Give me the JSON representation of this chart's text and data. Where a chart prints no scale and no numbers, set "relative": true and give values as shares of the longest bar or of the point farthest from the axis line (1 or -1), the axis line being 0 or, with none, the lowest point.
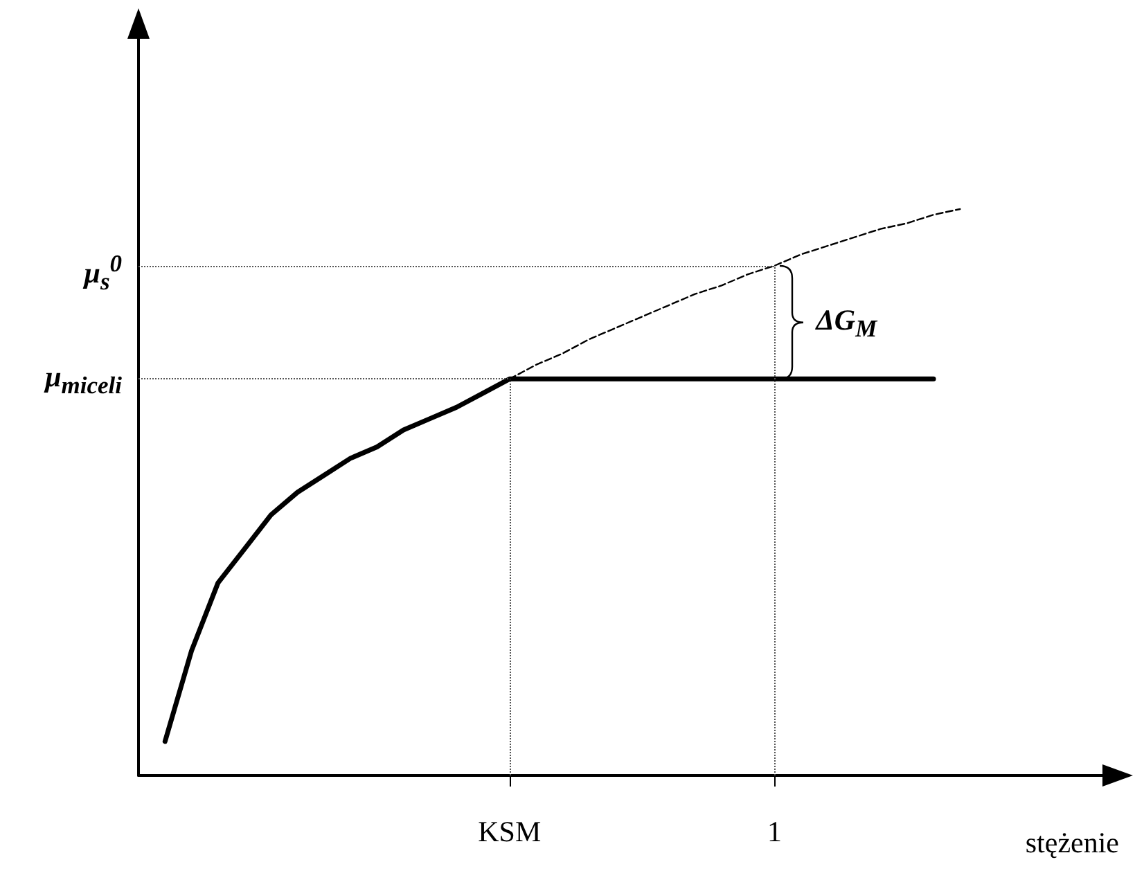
{
  "chart_data": {
    "type": "line",
    "relative": true,
    "xlabel": "stężenie",
    "categories": [
      null,
      null,
      null,
      null,
      null,
      null,
      null,
      null,
      null,
      null,
      null,
      null,
      null,
      null,
      "KSM",
      null,
      null,
      null,
      null,
      null,
      null,
      null,
      null,
      null,
      "1",
      null,
      null,
      null,
      null,
      null,
      null,
      null,
      null,
      null,
      null,
      null,
      null,
      null
    ],
    "marker": "none",
    "grid": false,
    "series": [
      {
        "color": "#000000",
        "line_style": "solid",
        "values": [
          null,
          0.06,
          0.22,
          0.34,
          0.4,
          0.46,
          0.5,
          0.53,
          0.56,
          0.58,
          0.61,
          0.63,
          0.65,
          0.675,
          0.7,
          0.7,
          0.7,
          0.7,
          0.7,
          0.7,
          0.7,
          0.7,
          0.7,
          0.7,
          0.7,
          0.7,
          0.7,
          0.7,
          0.7,
          0.7,
          0.7,
          null,
          null,
          null,
          null,
          null,
          null,
          null
        ]
      },
      {
        "color": "#000000",
        "line_style": "dashed",
        "values": [
          null,
          null,
          null,
          null,
          null,
          null,
          null,
          null,
          null,
          null,
          null,
          null,
          null,
          null,
          0.7,
          0.725,
          0.745,
          0.77,
          0.79,
          0.81,
          0.83,
          0.85,
          0.865,
          0.885,
          0.9,
          0.92,
          0.935,
          0.95,
          0.965,
          0.975,
          0.99,
          1.0,
          null,
          null,
          null,
          null,
          null,
          null
        ]
      }
    ],
    "ref_lines": [
      {
        "axis": "y",
        "value": 0.7,
        "label": "μ$_{miceli}$",
        "color": "#555555",
        "line_style": "dotted"
      },
      {
        "axis": "y",
        "value": 0.9,
        "label": "μ$_{s}$$^{0}$",
        "color": "#555555",
        "line_style": "dotted"
      },
      {
        "axis": "x",
        "value": "KSM",
        "color": "#555555",
        "line_style": "dotted"
      },
      {
        "axis": "x",
        "value": "1",
        "color": "#555555",
        "line_style": "dotted"
      }
    ],
    "annotations": [
      "ΔG$_{M}$"
    ]
  }
}
